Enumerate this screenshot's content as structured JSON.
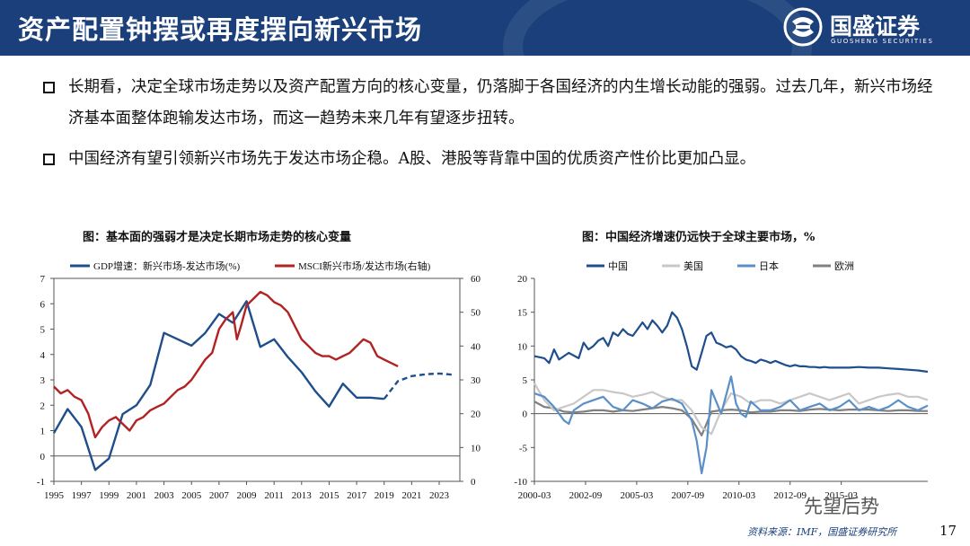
{
  "header": {
    "title": "资产配置钟摆或再度摆向新兴市场",
    "logo_name": "国盛证券",
    "logo_english": "GUOSHENG SECURITIES",
    "colors": {
      "bar": "#1a3f7a",
      "text": "#ffffff"
    }
  },
  "bullets": [
    "长期看，决定全球市场走势以及资产配置方向的核心变量，仍落脚于各国经济的内生增长动能的强弱。过去几年，新兴市场经济基本面整体跑输发达市场，而这一趋势未来几年有望逐步扭转。",
    "中国经济有望引领新兴市场先于发达市场企稳。A股、港股等背靠中国的优质资产性价比更加凸显。"
  ],
  "chart_data": [
    {
      "type": "line",
      "title": "图：基本面的强弱才是决定长期市场走势的核心变量",
      "x_labels": [
        "1995",
        "1997",
        "1999",
        "2001",
        "2003",
        "2005",
        "2007",
        "2009",
        "2011",
        "2013",
        "2015",
        "2017",
        "2019",
        "2021",
        "2023"
      ],
      "xlim": [
        1995,
        2024.5
      ],
      "ylim": [
        -1,
        7
      ],
      "y_ticks": [
        -1,
        0,
        1,
        2,
        3,
        4,
        5,
        6,
        7
      ],
      "y2lim": [
        0,
        60
      ],
      "y2_ticks": [
        0,
        10,
        20,
        30,
        40,
        50,
        60
      ],
      "series": [
        {
          "name": "GDP增速：新兴市场-发达市场(%)",
          "axis": "left",
          "color": "#1f4e8c",
          "x": [
            1995,
            1996,
            1997,
            1998,
            1999,
            2000,
            2001,
            2002,
            2003,
            2004,
            2005,
            2006,
            2007,
            2008,
            2009,
            2010,
            2011,
            2012,
            2013,
            2014,
            2015,
            2016,
            2017,
            2018,
            2019
          ],
          "y": [
            0.9,
            1.85,
            1.15,
            -0.55,
            -0.1,
            1.65,
            2.0,
            2.8,
            4.85,
            4.6,
            4.35,
            4.85,
            5.6,
            5.25,
            6.1,
            4.3,
            4.6,
            3.9,
            3.3,
            2.55,
            1.95,
            2.85,
            2.3,
            2.3,
            2.25
          ]
        },
        {
          "name": "GDP增速：新兴市场-发达市场(%) 预测",
          "axis": "left",
          "color": "#1f4e8c",
          "dashed": true,
          "x": [
            2019,
            2020,
            2021,
            2022,
            2023,
            2024
          ],
          "y": [
            2.25,
            2.95,
            3.15,
            3.22,
            3.25,
            3.2
          ]
        },
        {
          "name": "MSCI新兴市场/发达市场(右轴)",
          "axis": "right",
          "color": "#b22222",
          "x": [
            1995,
            1995.5,
            1996,
            1996.5,
            1997,
            1997.5,
            1998,
            1998.5,
            1999,
            1999.5,
            2000,
            2000.5,
            2001,
            2001.5,
            2002,
            2002.5,
            2003,
            2003.5,
            2004,
            2004.5,
            2005,
            2005.5,
            2006,
            2006.5,
            2007,
            2007.5,
            2008,
            2008.3,
            2008.6,
            2009,
            2009.5,
            2010,
            2010.5,
            2011,
            2011.5,
            2012,
            2012.5,
            2013,
            2013.5,
            2014,
            2014.5,
            2015,
            2015.5,
            2016,
            2016.5,
            2017,
            2017.5,
            2018,
            2018.5,
            2019,
            2019.5,
            2020
          ],
          "y": [
            28,
            26,
            27,
            25,
            24,
            20,
            13,
            16,
            18,
            19,
            17,
            15,
            18,
            19,
            21,
            22,
            23,
            25,
            27,
            28,
            30,
            33,
            36,
            38,
            45,
            48,
            50,
            42,
            46,
            52,
            54,
            56,
            55,
            53,
            52,
            50,
            46,
            42,
            40,
            38,
            37,
            37,
            36,
            37,
            38,
            40,
            42,
            41,
            37,
            36,
            35,
            34
          ]
        }
      ]
    },
    {
      "type": "line",
      "title": "图：中国经济增速仍远快于全球主要市场，%",
      "x_labels": [
        "2000-03",
        "2002-09",
        "2005-03",
        "2007-09",
        "2010-03",
        "2012-09",
        "2015-03"
      ],
      "xlim": [
        0,
        80
      ],
      "ylim": [
        -10,
        20
      ],
      "y_ticks": [
        -10,
        -5,
        0,
        5,
        10,
        15,
        20
      ],
      "series": [
        {
          "name": "中国",
          "color": "#1f4e8c",
          "x": [
            0,
            2,
            3,
            4,
            5,
            7,
            9,
            10,
            11,
            12,
            13,
            14,
            15,
            16,
            17,
            18,
            19,
            20,
            21,
            22,
            23,
            24,
            25,
            26,
            27,
            28,
            29,
            30,
            31,
            32,
            33,
            34,
            35,
            36,
            37,
            38,
            39,
            40,
            41,
            42,
            43,
            44,
            45,
            46,
            47,
            48,
            49,
            50,
            51,
            52,
            53,
            54,
            55,
            56,
            57,
            58,
            59,
            60,
            62,
            64,
            66,
            68,
            70,
            72,
            74,
            76,
            78,
            80
          ],
          "y": [
            8.5,
            8.2,
            7.5,
            9.5,
            8.0,
            9.0,
            8.2,
            10.5,
            9.5,
            10.0,
            10.8,
            11.2,
            10.0,
            12.0,
            11.5,
            12.5,
            11.8,
            11.5,
            12.5,
            13.5,
            12.5,
            13.8,
            13.0,
            12.0,
            13.0,
            15.0,
            14.2,
            12.5,
            10.0,
            7.0,
            6.5,
            9.0,
            11.5,
            12.0,
            10.5,
            10.2,
            9.8,
            10.0,
            9.5,
            8.5,
            8.0,
            7.8,
            7.5,
            8.0,
            7.8,
            7.5,
            7.8,
            7.5,
            7.2,
            7.0,
            7.2,
            7.0,
            7.0,
            6.9,
            6.9,
            6.8,
            6.9,
            6.8,
            6.8,
            6.8,
            6.9,
            6.8,
            6.8,
            6.7,
            6.6,
            6.5,
            6.4,
            6.2
          ]
        },
        {
          "name": "美国",
          "color": "#c8c8c8",
          "x": [
            0,
            2,
            4,
            6,
            8,
            10,
            12,
            14,
            16,
            18,
            20,
            22,
            24,
            26,
            28,
            30,
            32,
            34,
            36,
            38,
            40,
            42,
            44,
            46,
            48,
            50,
            52,
            54,
            56,
            58,
            60,
            62,
            64,
            66,
            68,
            70,
            72,
            74,
            76,
            78,
            80
          ],
          "y": [
            4.5,
            2.0,
            0.5,
            1.0,
            1.5,
            2.5,
            3.5,
            3.5,
            3.2,
            3.0,
            2.5,
            2.8,
            3.2,
            2.5,
            2.0,
            2.0,
            0.5,
            -2.0,
            -3.0,
            0.5,
            3.0,
            2.5,
            1.5,
            2.0,
            2.0,
            1.5,
            2.0,
            2.5,
            3.0,
            2.5,
            2.0,
            2.5,
            3.0,
            1.5,
            2.0,
            2.5,
            2.8,
            3.0,
            2.5,
            2.5,
            2.0
          ]
        },
        {
          "name": "日本",
          "color": "#5b8fc7",
          "x": [
            0,
            2,
            4,
            6,
            7,
            8,
            10,
            12,
            14,
            16,
            18,
            20,
            22,
            24,
            26,
            28,
            30,
            32,
            33,
            34,
            35,
            36,
            38,
            40,
            41,
            42,
            43,
            44,
            46,
            48,
            50,
            52,
            54,
            56,
            58,
            60,
            62,
            64,
            66,
            68,
            70,
            72,
            74,
            76,
            78,
            80
          ],
          "y": [
            3.0,
            2.5,
            1.0,
            -1.0,
            -1.5,
            0.5,
            1.5,
            2.0,
            2.5,
            1.0,
            0.5,
            2.0,
            1.5,
            0.8,
            1.8,
            2.2,
            1.5,
            -1.0,
            -4.0,
            -8.8,
            -5.0,
            3.5,
            0.0,
            5.5,
            1.5,
            0.0,
            -0.5,
            1.8,
            0.5,
            0.5,
            1.0,
            2.0,
            0.5,
            1.0,
            1.5,
            0.5,
            1.0,
            2.0,
            0.5,
            1.0,
            0.5,
            1.0,
            2.0,
            1.0,
            0.5,
            1.2
          ]
        },
        {
          "name": "欧洲",
          "color": "#808080",
          "x": [
            0,
            2,
            4,
            6,
            8,
            10,
            12,
            14,
            16,
            18,
            20,
            22,
            24,
            26,
            28,
            30,
            32,
            33,
            34,
            35,
            36,
            38,
            40,
            42,
            44,
            46,
            48,
            50,
            52,
            54,
            56,
            58,
            60,
            62,
            64,
            66,
            68,
            70,
            72,
            74,
            76,
            78,
            80
          ],
          "y": [
            1.8,
            1.0,
            0.8,
            0.3,
            0.2,
            0.3,
            0.5,
            0.5,
            0.3,
            0.5,
            0.4,
            0.6,
            0.8,
            1.0,
            0.8,
            0.5,
            -0.8,
            -2.0,
            -3.2,
            -1.5,
            0.3,
            0.5,
            0.6,
            0.5,
            0.2,
            0.3,
            0.3,
            0.5,
            0.5,
            0.4,
            0.6,
            0.7,
            0.6,
            0.5,
            0.6,
            0.6,
            0.6,
            0.5,
            0.4,
            0.5,
            0.5,
            0.4,
            0.4
          ]
        }
      ]
    }
  ],
  "footer": {
    "source": "资料来源：IMF，国盛证券研究所",
    "page_number": "17",
    "watermark": "先望后势"
  }
}
